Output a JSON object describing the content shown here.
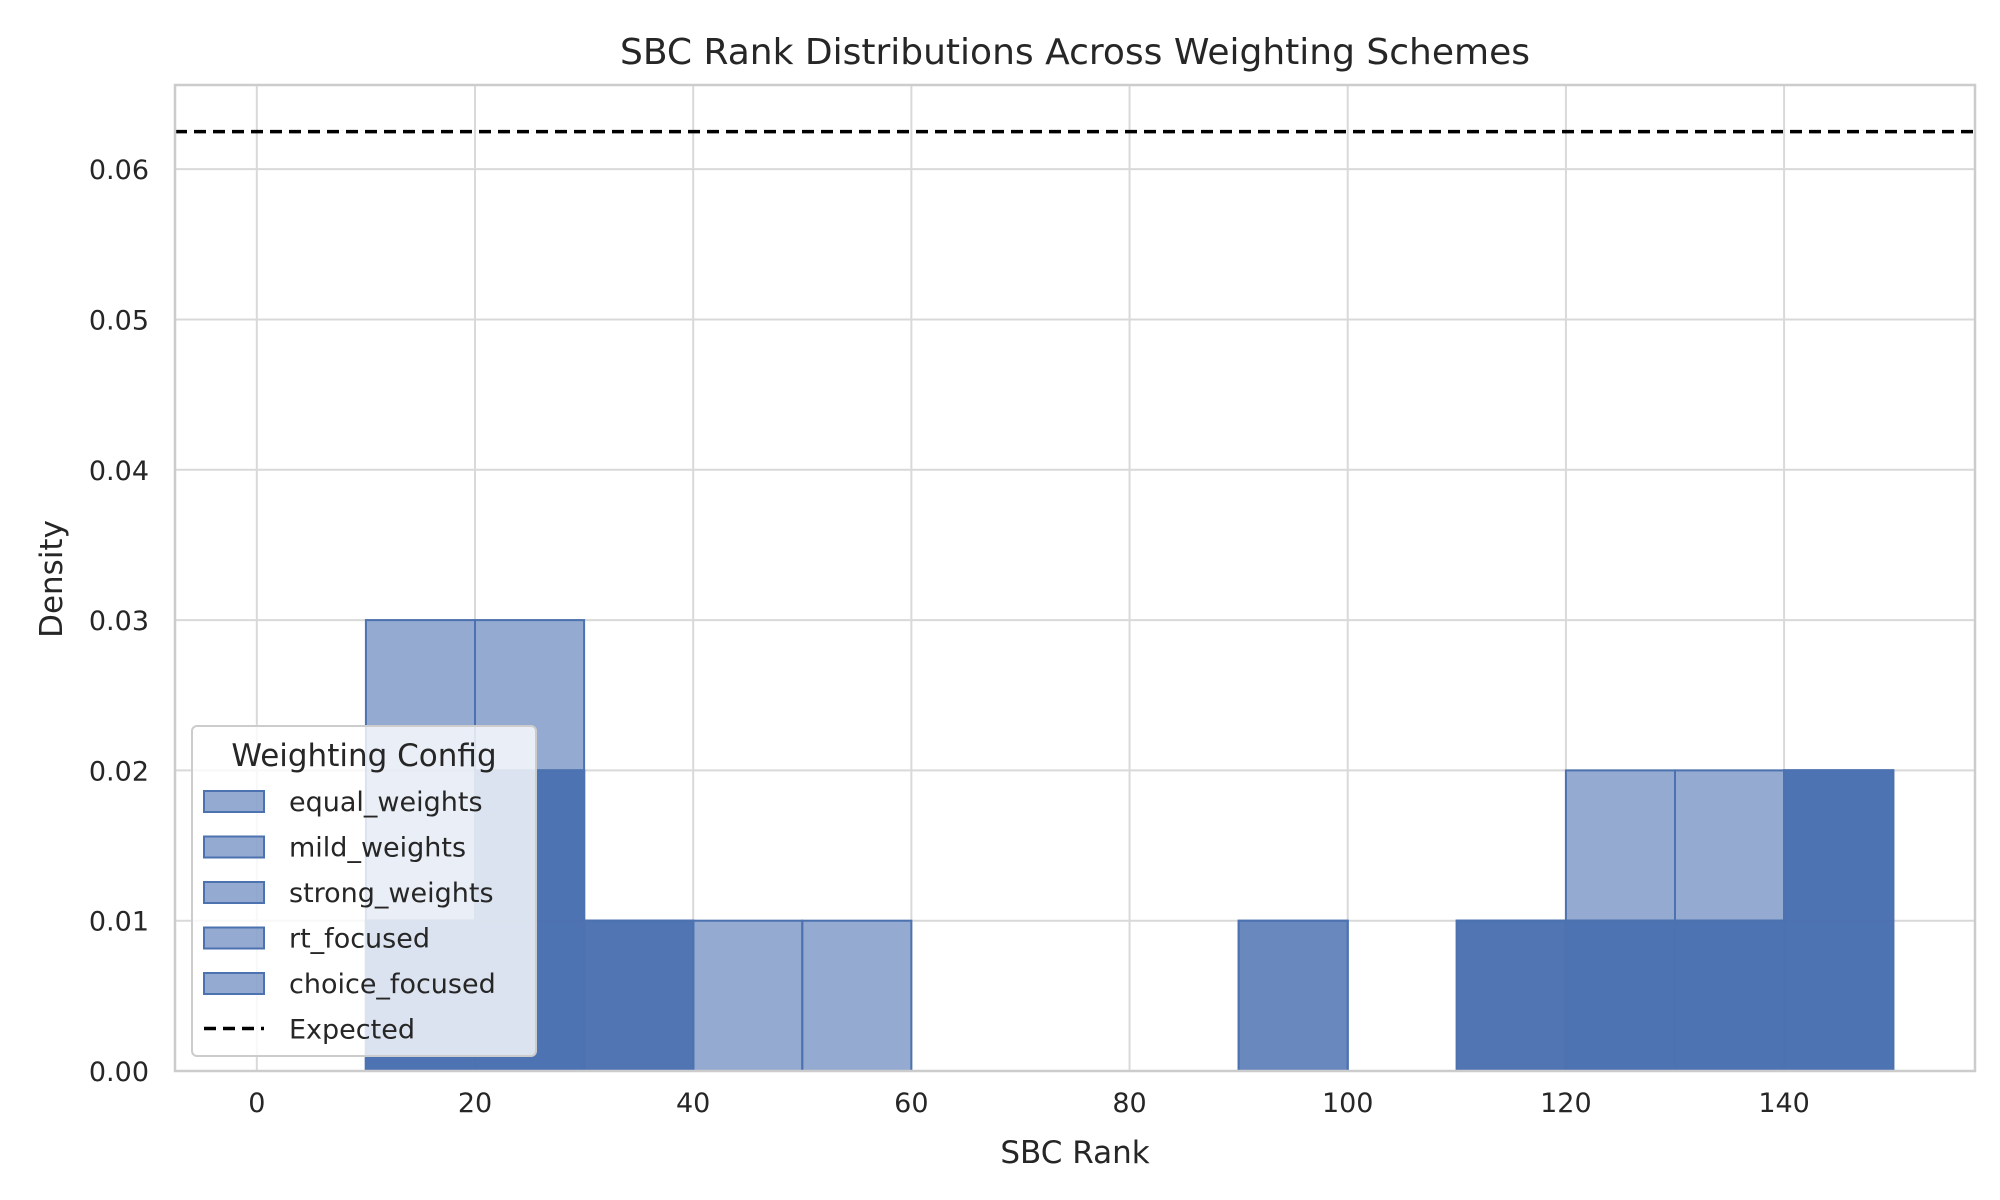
{
  "chart_data": {
    "type": "bar",
    "title": "SBC Rank Distributions Across Weighting Schemes",
    "xlabel": "SBC Rank",
    "ylabel": "Density",
    "xlim": [
      -7.5,
      157.5
    ],
    "ylim": [
      0,
      0.0656
    ],
    "xticks": [
      0,
      20,
      40,
      60,
      80,
      100,
      120,
      140
    ],
    "yticks": [
      0.0,
      0.01,
      0.02,
      0.03,
      0.04,
      0.05,
      0.06
    ],
    "ytick_labels": [
      "0.00",
      "0.01",
      "0.02",
      "0.03",
      "0.04",
      "0.05",
      "0.06"
    ],
    "grid": true,
    "bin_width": 10,
    "bin_edges": [
      10,
      20,
      30,
      40,
      50,
      60,
      70,
      80,
      90,
      100,
      110,
      120,
      130,
      140,
      150
    ],
    "series": [
      {
        "name": "equal_weights",
        "values": [
          0.01,
          0.02,
          0.01,
          0,
          0,
          0,
          0,
          0,
          0,
          0,
          0.01,
          0.01,
          0.01,
          0.02
        ]
      },
      {
        "name": "mild_weights",
        "values": [
          0.01,
          0.02,
          0.01,
          0,
          0,
          0,
          0,
          0,
          0,
          0,
          0.01,
          0.01,
          0.01,
          0.02
        ]
      },
      {
        "name": "strong_weights",
        "values": [
          0.01,
          0.02,
          0.01,
          0,
          0,
          0,
          0,
          0,
          0,
          0,
          0.01,
          0.01,
          0.01,
          0.02
        ]
      },
      {
        "name": "rt_focused",
        "values": [
          0.03,
          0.03,
          0,
          0,
          0.01,
          0,
          0,
          0,
          0.01,
          0,
          0.01,
          0.02,
          0.02,
          0.02
        ]
      },
      {
        "name": "choice_focused",
        "values": [
          0.01,
          0.02,
          0.01,
          0.01,
          0,
          0,
          0,
          0,
          0.01,
          0,
          0,
          0.01,
          0.01,
          0.02
        ]
      }
    ],
    "series_color": "#4c72b0",
    "reference_line": {
      "name": "Expected",
      "value": 0.0625,
      "style": "dashed",
      "color": "#000000"
    },
    "legend": {
      "title": "Weighting Config",
      "placement": "lower-left",
      "entries": [
        "equal_weights",
        "mild_weights",
        "strong_weights",
        "rt_focused",
        "choice_focused",
        "Expected"
      ]
    }
  }
}
